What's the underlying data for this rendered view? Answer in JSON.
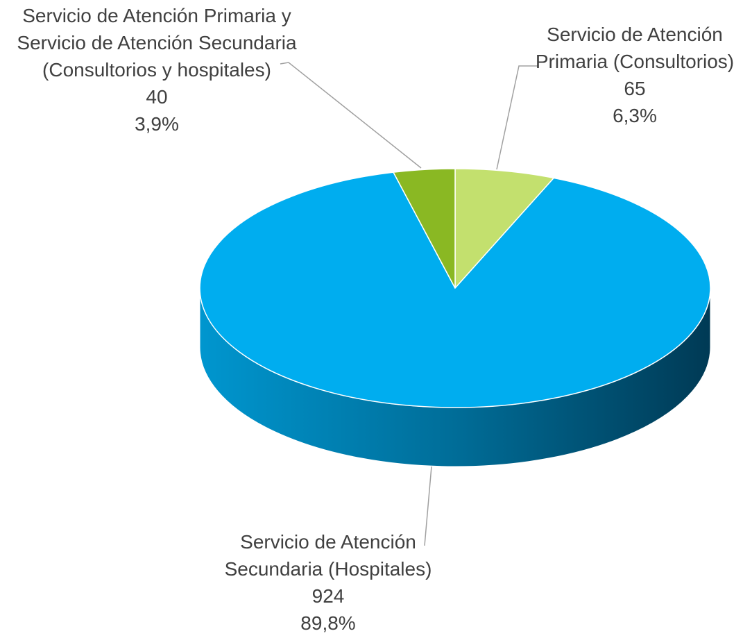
{
  "chart_data": {
    "type": "pie3d",
    "categories": [
      "Servicio de Atención Primaria (Consultorios)",
      "Servicio de Atención Secundaria (Hospitales)",
      "Servicio de Atención Primaria y Servicio de Atención Secundaria (Consultorios y hospitales)"
    ],
    "values": [
      65,
      924,
      40
    ],
    "percents": [
      6.3,
      89.8,
      3.9
    ],
    "percent_labels": [
      "6,3%",
      "89,8%",
      "3,9%"
    ],
    "colors": [
      "#c3e06e",
      "#00adef",
      "#8ab823"
    ]
  }
}
